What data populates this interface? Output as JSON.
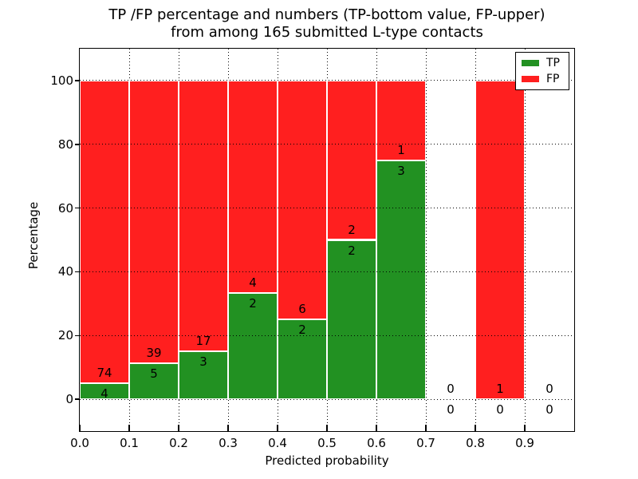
{
  "chart_data": {
    "type": "bar",
    "stacked": true,
    "title_line1": "TP /FP percentage and numbers (TP-bottom value, FP-upper)",
    "title_line2": "from among 165 submitted L-type contacts",
    "xlabel": "Predicted probability",
    "ylabel": "Percentage",
    "total_contacts": 165,
    "bin_width": 0.1,
    "bin_starts": [
      0.0,
      0.1,
      0.2,
      0.3,
      0.4,
      0.5,
      0.6,
      0.7,
      0.8,
      0.9
    ],
    "series": [
      {
        "name": "TP",
        "color": "#229122",
        "values": [
          4,
          5,
          3,
          2,
          2,
          2,
          3,
          0,
          0,
          0
        ]
      },
      {
        "name": "FP",
        "color": "#ff1f1f",
        "values": [
          74,
          39,
          17,
          4,
          6,
          2,
          1,
          0,
          1,
          0
        ]
      }
    ],
    "tp_percent_by_bin": [
      5.13,
      11.36,
      15.0,
      33.33,
      25.0,
      50.0,
      75.0,
      0,
      0,
      0
    ],
    "xlim": [
      0.0,
      1.0
    ],
    "ylim": [
      -10,
      110
    ],
    "xticks": [
      "0.0",
      "0.1",
      "0.2",
      "0.3",
      "0.4",
      "0.5",
      "0.6",
      "0.7",
      "0.8",
      "0.9"
    ],
    "yticks": [
      0,
      20,
      40,
      60,
      80,
      100
    ],
    "grid": "dotted",
    "legend": {
      "position": "upper right",
      "entries": [
        "TP",
        "FP"
      ]
    }
  }
}
